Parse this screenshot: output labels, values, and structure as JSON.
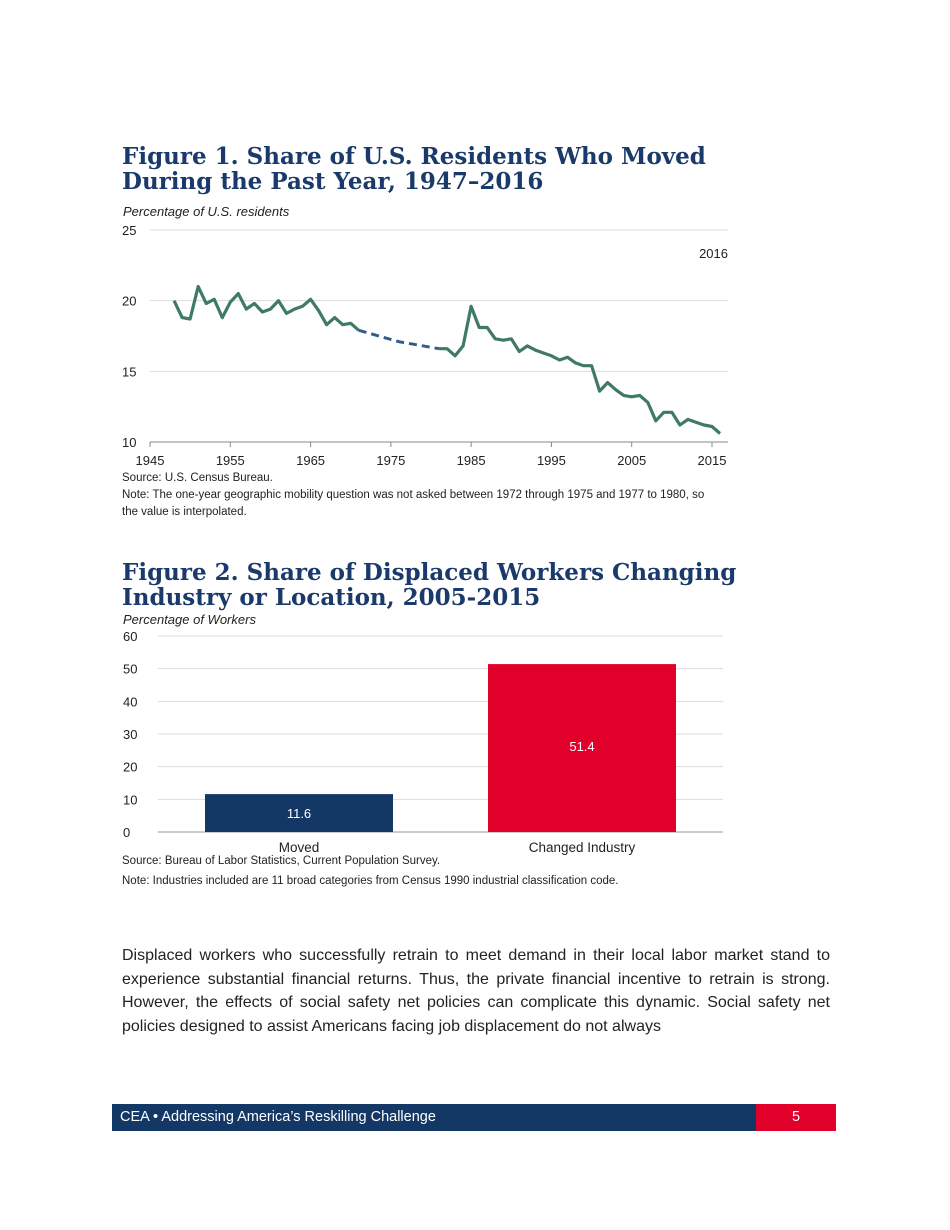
{
  "figure1": {
    "title": "Figure 1. Share of U.S. Residents Who Moved During the Past Year, 1947–2016",
    "unit_label": "Percentage of U.S. residents",
    "source": "Source: U.S. Census Bureau.",
    "note": "Note: The one-year geographic mobility question was not asked between 1972 through 1975 and 1977 to 1980, so the value is interpolated."
  },
  "figure2": {
    "title": "Figure 2. Share of Displaced Workers Changing Industry or Location, 2005-2015",
    "unit_label": "Percentage of  Workers",
    "source": "Source: Bureau of Labor Statistics, Current Population Survey.",
    "note": "Note: Industries included are 11 broad categories from Census 1990 industrial classification code."
  },
  "chart_data": [
    {
      "type": "line",
      "title": "Figure 1. Share of U.S. Residents Who Moved During the Past Year, 1947–2016",
      "ylabel": "Percentage of U.S. residents",
      "xlim": [
        1945,
        2016
      ],
      "ylim": [
        10,
        25
      ],
      "xticks": [
        "1945",
        "1955",
        "1965",
        "1975",
        "1985",
        "1995",
        "2005",
        "2015"
      ],
      "yticks": [
        "10",
        "15",
        "20",
        "25"
      ],
      "annotation": "2016",
      "grid": true,
      "line_color": "#3f7a66",
      "interpolated_color": "#2f5e8e",
      "interpolated_range": [
        1971,
        1981
      ],
      "x": [
        1948,
        1949,
        1950,
        1951,
        1952,
        1953,
        1954,
        1955,
        1956,
        1957,
        1958,
        1959,
        1960,
        1961,
        1962,
        1963,
        1964,
        1965,
        1966,
        1967,
        1968,
        1969,
        1970,
        1971,
        1976,
        1981,
        1982,
        1983,
        1984,
        1985,
        1986,
        1987,
        1988,
        1989,
        1990,
        1991,
        1992,
        1993,
        1994,
        1995,
        1996,
        1997,
        1998,
        1999,
        2000,
        2001,
        2002,
        2003,
        2004,
        2005,
        2006,
        2007,
        2008,
        2009,
        2010,
        2011,
        2012,
        2013,
        2014,
        2015,
        2016
      ],
      "values": [
        20.0,
        18.8,
        18.7,
        21.0,
        19.8,
        20.1,
        18.8,
        19.9,
        20.5,
        19.4,
        19.8,
        19.2,
        19.4,
        20.0,
        19.1,
        19.4,
        19.6,
        20.1,
        19.3,
        18.3,
        18.8,
        18.3,
        18.4,
        17.9,
        17.1,
        16.6,
        16.6,
        16.1,
        16.8,
        19.6,
        18.1,
        18.1,
        17.3,
        17.2,
        17.3,
        16.4,
        16.8,
        16.5,
        16.3,
        16.1,
        15.8,
        16.0,
        15.6,
        15.4,
        15.4,
        13.6,
        14.2,
        13.7,
        13.3,
        13.2,
        13.3,
        12.8,
        11.5,
        12.1,
        12.1,
        11.2,
        11.6,
        11.4,
        11.2,
        11.1,
        10.6
      ]
    },
    {
      "type": "bar",
      "title": "Figure 2. Share of Displaced Workers Changing Industry or Location, 2005-2015",
      "ylabel": "Percentage of  Workers",
      "categories": [
        "Moved",
        "Changed Industry"
      ],
      "values": [
        11.6,
        51.4
      ],
      "data_labels": [
        "11.6",
        "51.4"
      ],
      "colors": [
        "#143866",
        "#e0002a"
      ],
      "ylim": [
        0,
        60
      ],
      "yticks": [
        "0",
        "10",
        "20",
        "30",
        "40",
        "50",
        "60"
      ],
      "grid": true
    }
  ],
  "body_text": "Displaced workers who successfully retrain to meet demand in their local labor market stand to experience substantial financial returns. Thus, the private financial incentive to retrain is strong. However, the effects of social safety net policies can complicate this dynamic. Social safety net policies designed to assist Americans facing job displacement do not always",
  "footer": {
    "text": "CEA • Addressing America’s Reskilling Challenge",
    "page_number": "5"
  }
}
